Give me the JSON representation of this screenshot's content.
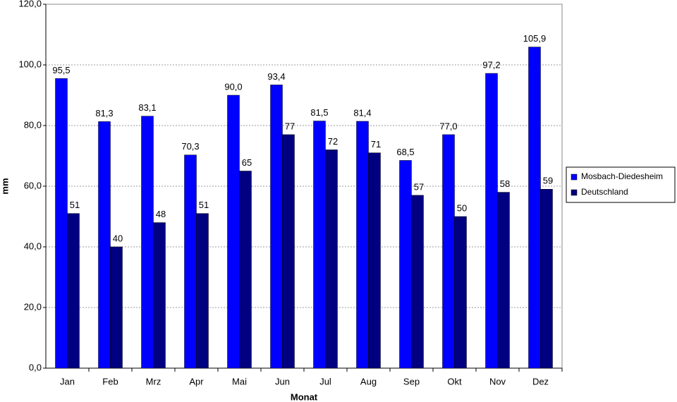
{
  "chart_data": {
    "type": "bar",
    "x_label": "Monat",
    "y_label": "mm",
    "categories": [
      "Jan",
      "Feb",
      "Mrz",
      "Apr",
      "Mai",
      "Jun",
      "Jul",
      "Aug",
      "Sep",
      "Okt",
      "Nov",
      "Dez"
    ],
    "series": [
      {
        "name": "Mosbach-Diedesheim",
        "color": "#0000ff",
        "values": [
          95.5,
          81.3,
          83.1,
          70.3,
          90.0,
          93.4,
          81.5,
          81.4,
          68.5,
          77.0,
          97.2,
          105.9
        ],
        "value_labels": [
          "95,5",
          "81,3",
          "83,1",
          "70,3",
          "90,0",
          "93,4",
          "81,5",
          "81,4",
          "68,5",
          "77,0",
          "97,2",
          "105,9"
        ]
      },
      {
        "name": "Deutschland",
        "color": "#000080",
        "values": [
          51,
          40,
          48,
          51,
          65,
          77,
          72,
          71,
          57,
          50,
          58,
          59
        ]
      }
    ],
    "ylim": [
      0,
      120
    ],
    "yticks": [
      {
        "value": 0,
        "label": "0,0"
      },
      {
        "value": 20,
        "label": "20,0"
      },
      {
        "value": 40,
        "label": "40,0"
      },
      {
        "value": 60,
        "label": "60,0"
      },
      {
        "value": 80,
        "label": "80,0"
      },
      {
        "value": 100,
        "label": "100,0"
      },
      {
        "value": 120,
        "label": "120,0"
      }
    ],
    "grid": true,
    "legend": "right"
  }
}
